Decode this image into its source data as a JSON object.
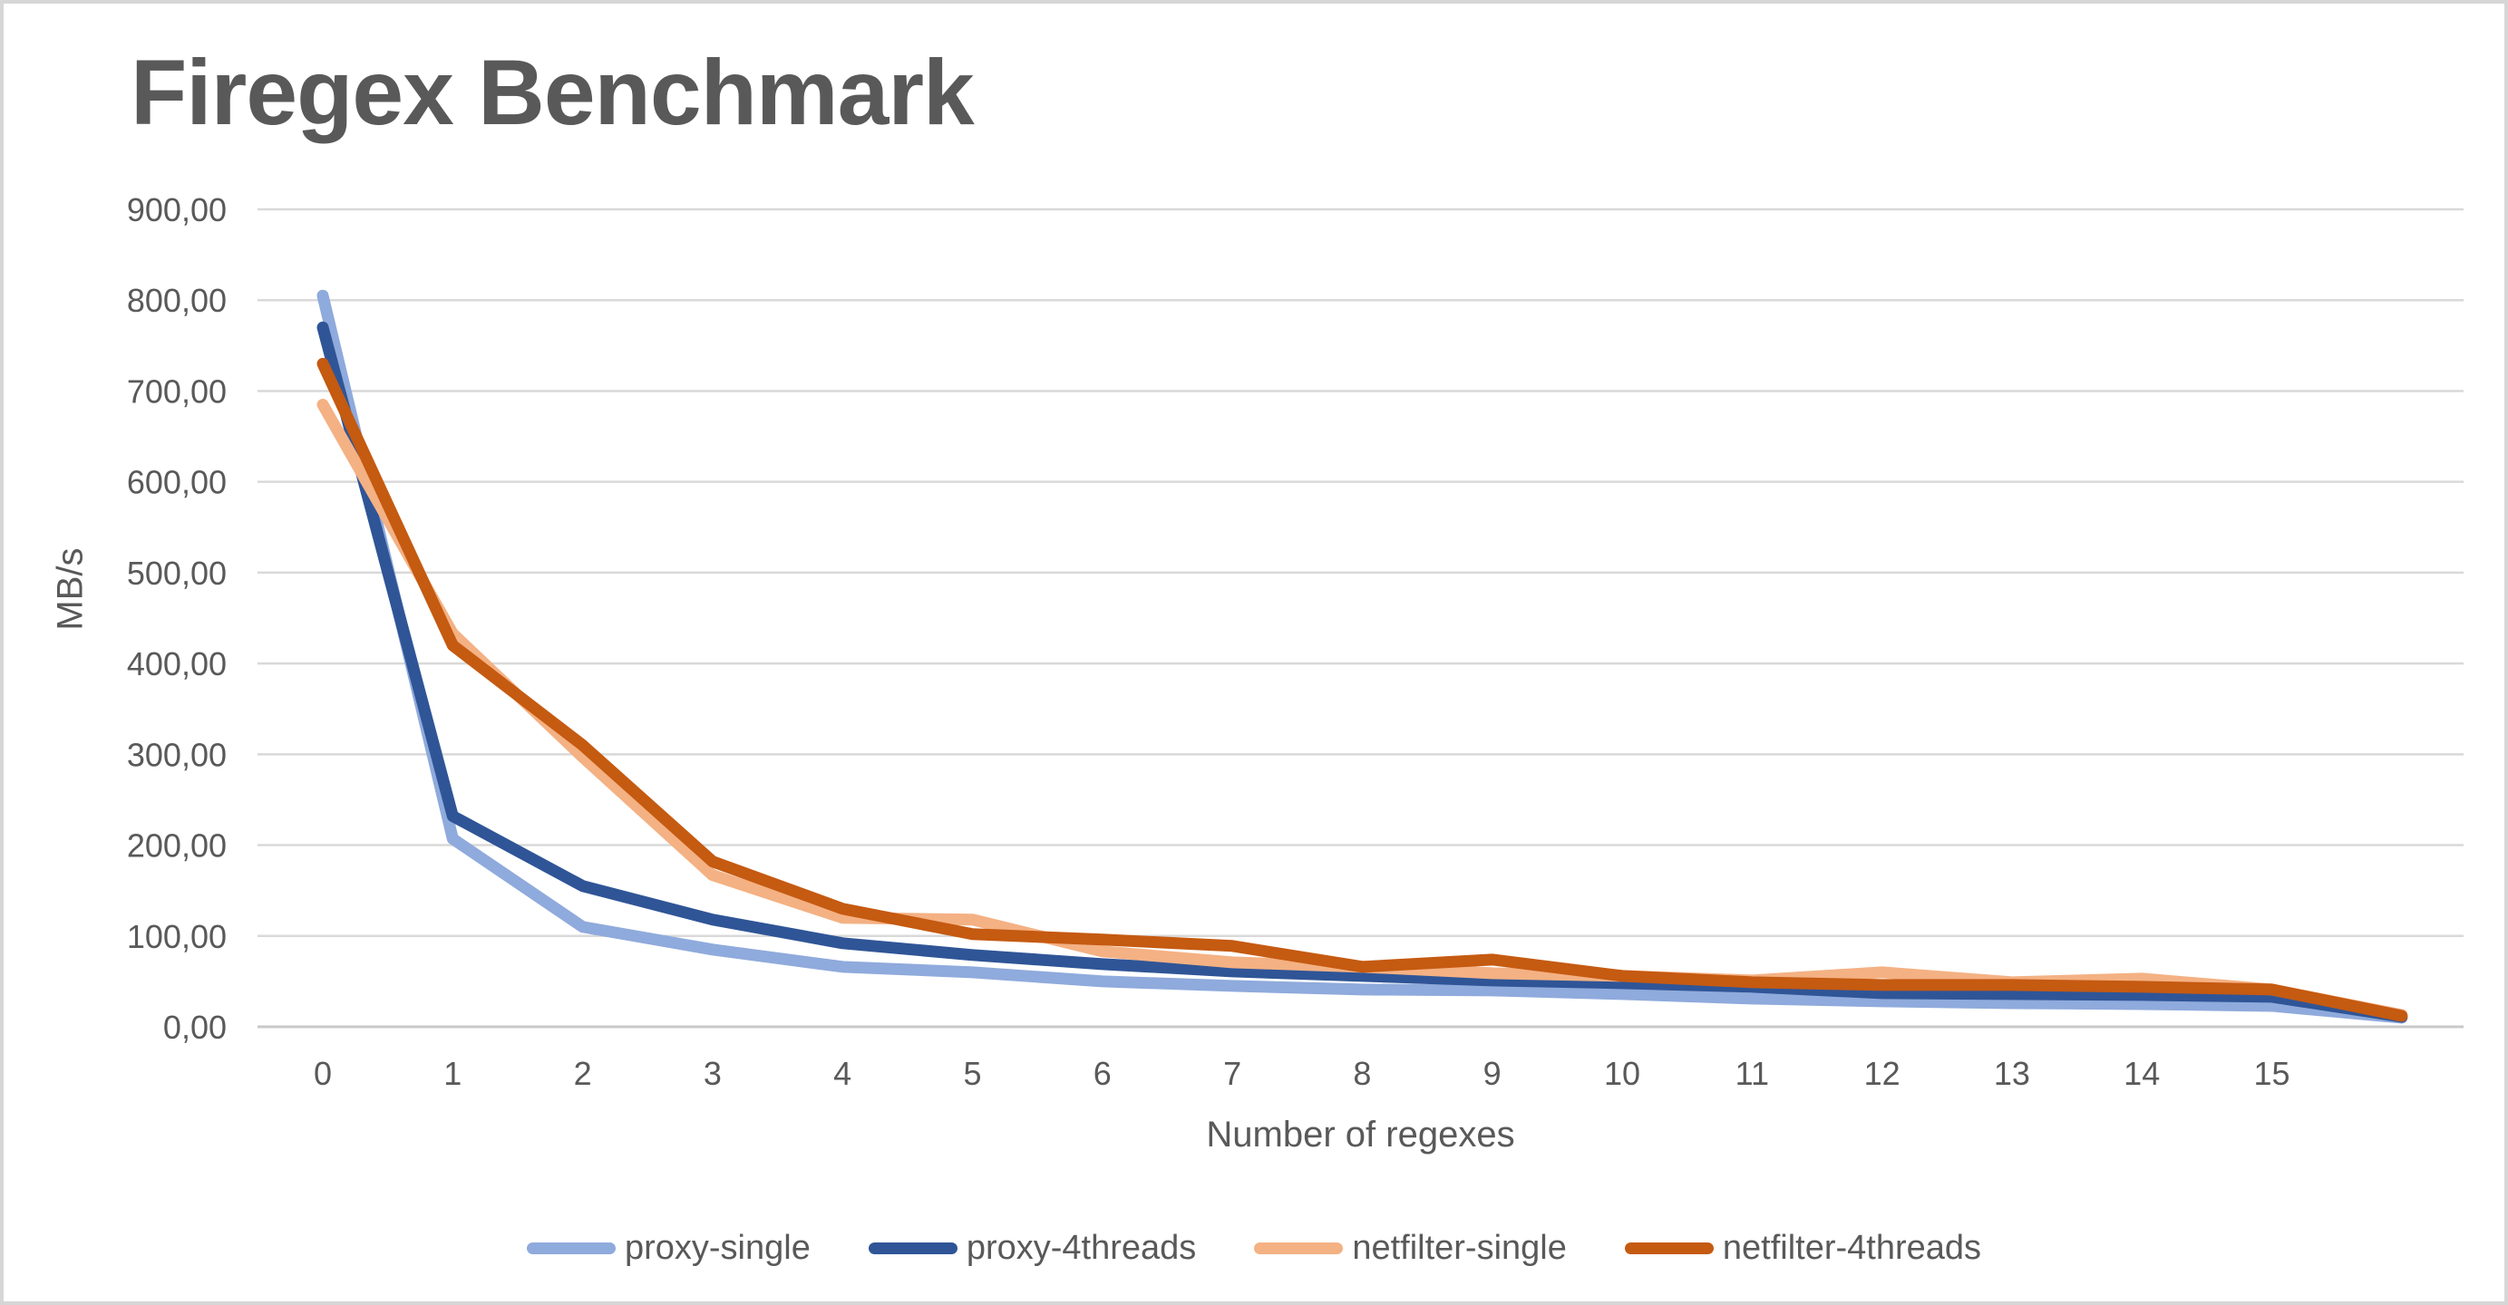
{
  "page": {
    "background": "#ffffff",
    "border_color": "#d6d6d6"
  },
  "chart_data": {
    "type": "line",
    "title": "Firegex Benchmark",
    "xlabel": "Number of regexes",
    "ylabel": "MB/s",
    "ylim": [
      0,
      900
    ],
    "y_step": 100,
    "grid": true,
    "legend_position": "bottom",
    "text_color": "#595959",
    "gridline_color": "#D9D9D9",
    "axis_line_color": "#C9C9C9",
    "y_tick_labels": [
      "0,00",
      "100,00",
      "200,00",
      "300,00",
      "400,00",
      "500,00",
      "600,00",
      "700,00",
      "800,00",
      "900,00"
    ],
    "x_tick_labels": [
      "0",
      "1",
      "2",
      "3",
      "4",
      "5",
      "6",
      "7",
      "8",
      "9",
      "10",
      "11",
      "12",
      "13",
      "14",
      "15"
    ],
    "x": [
      0,
      1,
      2,
      3,
      4,
      5,
      6,
      7,
      8,
      9,
      10,
      11,
      12,
      13,
      14,
      15,
      16
    ],
    "series": [
      {
        "name": "proxy-single",
        "color": "#8FAADC",
        "values": [
          805,
          207,
          110,
          85,
          66,
          60,
          50,
          45,
          41,
          40,
          36,
          31,
          28,
          26,
          25,
          23,
          10
        ]
      },
      {
        "name": "proxy-4threads",
        "color": "#2F5597",
        "values": [
          770,
          232,
          155,
          118,
          92,
          79,
          69,
          61,
          56,
          51,
          48,
          44,
          37,
          36,
          35,
          33,
          11
        ]
      },
      {
        "name": "netfilter-single",
        "color": "#F4B183",
        "values": [
          685,
          433,
          297,
          167,
          120,
          118,
          83,
          71,
          66,
          59,
          56,
          51,
          60,
          49,
          53,
          41,
          13
        ]
      },
      {
        "name": "netfilter-4threads",
        "color": "#C55A11",
        "values": [
          730,
          420,
          310,
          182,
          130,
          102,
          96,
          89,
          66,
          74,
          56,
          49,
          46,
          46,
          44,
          41,
          12
        ]
      }
    ]
  }
}
